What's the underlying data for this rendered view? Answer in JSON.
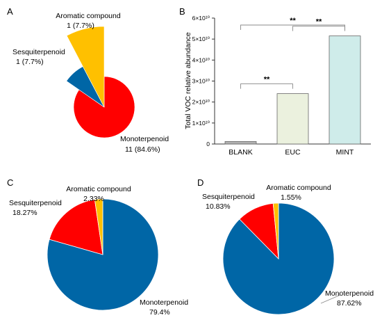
{
  "panels": {
    "a": {
      "letter": "A"
    },
    "b": {
      "letter": "B"
    },
    "c": {
      "letter": "C"
    },
    "d": {
      "letter": "D"
    }
  },
  "chart_data": [
    {
      "id": "A",
      "type": "pie",
      "exploded": true,
      "slices": [
        {
          "name": "Monoterpenoid",
          "label_value": "11 (84.6%)",
          "value": 11,
          "color": "#ff0000"
        },
        {
          "name": "Sesquiterpenoid",
          "label_value": "1 (7.7%)",
          "value": 1,
          "color": "#0066a6"
        },
        {
          "name": "Aromatic compound",
          "label_value": "1 (7.7%)",
          "value": 1,
          "color": "#ffc000"
        }
      ]
    },
    {
      "id": "B",
      "type": "bar",
      "ylabel": "Total VOC relative abundance",
      "yticks": [
        "0",
        "1×10¹⁰",
        "2×10¹⁰",
        "3×10¹⁰",
        "4×10¹⁰",
        "5×10¹⁰",
        "6×10¹⁰"
      ],
      "ylim": [
        0,
        60000000000
      ],
      "categories": [
        "BLANK",
        "EUC",
        "MINT"
      ],
      "values": [
        1200000000,
        24000000000,
        51500000000
      ],
      "colors": [
        "#b3b3b3",
        "#ebf1de",
        "#cfecea"
      ],
      "significance": [
        {
          "from": "EUC",
          "to": "MINT",
          "label": "**"
        },
        {
          "from": "BLANK",
          "to": "EUC",
          "label": "**"
        },
        {
          "from": "BLANK",
          "to": "MINT",
          "label": "**"
        }
      ]
    },
    {
      "id": "C",
      "type": "pie",
      "slices": [
        {
          "name": "Monoterpenoid",
          "label_value": "79.4%",
          "value": 79.4,
          "color": "#0066a6"
        },
        {
          "name": "Sesquiterpenoid",
          "label_value": "18.27%",
          "value": 18.27,
          "color": "#ff0000"
        },
        {
          "name": "Aromatic compound",
          "label_value": "2.33%",
          "value": 2.33,
          "color": "#ffc000"
        }
      ]
    },
    {
      "id": "D",
      "type": "pie",
      "slices": [
        {
          "name": "Monoterpenoid",
          "label_value": "87.62%",
          "value": 87.62,
          "color": "#0066a6"
        },
        {
          "name": "Sesquiterpenoid",
          "label_value": "10.83%",
          "value": 10.83,
          "color": "#ff0000"
        },
        {
          "name": "Aromatic compound",
          "label_value": "1.55%",
          "value": 1.55,
          "color": "#ffc000"
        }
      ]
    }
  ]
}
